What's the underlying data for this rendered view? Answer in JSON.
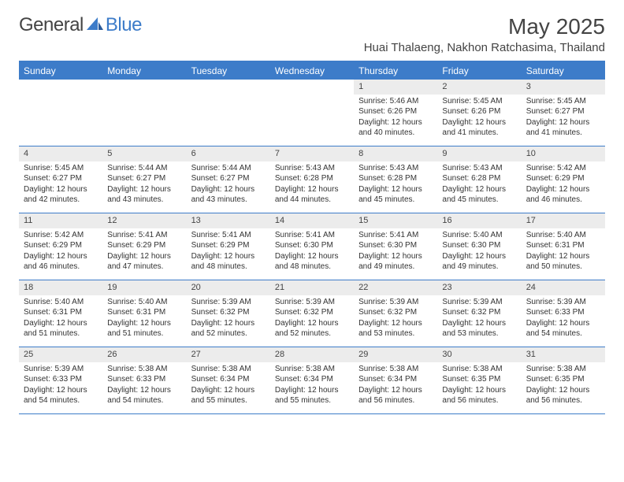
{
  "logo": {
    "text1": "General",
    "text2": "Blue"
  },
  "title": "May 2025",
  "subtitle": "Huai Thalaeng, Nakhon Ratchasima, Thailand",
  "colors": {
    "accent": "#3d7cc9",
    "daynum_bg": "#ececec",
    "text": "#333333",
    "bg": "#ffffff"
  },
  "weekdays": [
    "Sunday",
    "Monday",
    "Tuesday",
    "Wednesday",
    "Thursday",
    "Friday",
    "Saturday"
  ],
  "weeks": [
    [
      {
        "n": "",
        "sr": "",
        "ss": "",
        "dl": ""
      },
      {
        "n": "",
        "sr": "",
        "ss": "",
        "dl": ""
      },
      {
        "n": "",
        "sr": "",
        "ss": "",
        "dl": ""
      },
      {
        "n": "",
        "sr": "",
        "ss": "",
        "dl": ""
      },
      {
        "n": "1",
        "sr": "Sunrise: 5:46 AM",
        "ss": "Sunset: 6:26 PM",
        "dl": "Daylight: 12 hours and 40 minutes."
      },
      {
        "n": "2",
        "sr": "Sunrise: 5:45 AM",
        "ss": "Sunset: 6:26 PM",
        "dl": "Daylight: 12 hours and 41 minutes."
      },
      {
        "n": "3",
        "sr": "Sunrise: 5:45 AM",
        "ss": "Sunset: 6:27 PM",
        "dl": "Daylight: 12 hours and 41 minutes."
      }
    ],
    [
      {
        "n": "4",
        "sr": "Sunrise: 5:45 AM",
        "ss": "Sunset: 6:27 PM",
        "dl": "Daylight: 12 hours and 42 minutes."
      },
      {
        "n": "5",
        "sr": "Sunrise: 5:44 AM",
        "ss": "Sunset: 6:27 PM",
        "dl": "Daylight: 12 hours and 43 minutes."
      },
      {
        "n": "6",
        "sr": "Sunrise: 5:44 AM",
        "ss": "Sunset: 6:27 PM",
        "dl": "Daylight: 12 hours and 43 minutes."
      },
      {
        "n": "7",
        "sr": "Sunrise: 5:43 AM",
        "ss": "Sunset: 6:28 PM",
        "dl": "Daylight: 12 hours and 44 minutes."
      },
      {
        "n": "8",
        "sr": "Sunrise: 5:43 AM",
        "ss": "Sunset: 6:28 PM",
        "dl": "Daylight: 12 hours and 45 minutes."
      },
      {
        "n": "9",
        "sr": "Sunrise: 5:43 AM",
        "ss": "Sunset: 6:28 PM",
        "dl": "Daylight: 12 hours and 45 minutes."
      },
      {
        "n": "10",
        "sr": "Sunrise: 5:42 AM",
        "ss": "Sunset: 6:29 PM",
        "dl": "Daylight: 12 hours and 46 minutes."
      }
    ],
    [
      {
        "n": "11",
        "sr": "Sunrise: 5:42 AM",
        "ss": "Sunset: 6:29 PM",
        "dl": "Daylight: 12 hours and 46 minutes."
      },
      {
        "n": "12",
        "sr": "Sunrise: 5:41 AM",
        "ss": "Sunset: 6:29 PM",
        "dl": "Daylight: 12 hours and 47 minutes."
      },
      {
        "n": "13",
        "sr": "Sunrise: 5:41 AM",
        "ss": "Sunset: 6:29 PM",
        "dl": "Daylight: 12 hours and 48 minutes."
      },
      {
        "n": "14",
        "sr": "Sunrise: 5:41 AM",
        "ss": "Sunset: 6:30 PM",
        "dl": "Daylight: 12 hours and 48 minutes."
      },
      {
        "n": "15",
        "sr": "Sunrise: 5:41 AM",
        "ss": "Sunset: 6:30 PM",
        "dl": "Daylight: 12 hours and 49 minutes."
      },
      {
        "n": "16",
        "sr": "Sunrise: 5:40 AM",
        "ss": "Sunset: 6:30 PM",
        "dl": "Daylight: 12 hours and 49 minutes."
      },
      {
        "n": "17",
        "sr": "Sunrise: 5:40 AM",
        "ss": "Sunset: 6:31 PM",
        "dl": "Daylight: 12 hours and 50 minutes."
      }
    ],
    [
      {
        "n": "18",
        "sr": "Sunrise: 5:40 AM",
        "ss": "Sunset: 6:31 PM",
        "dl": "Daylight: 12 hours and 51 minutes."
      },
      {
        "n": "19",
        "sr": "Sunrise: 5:40 AM",
        "ss": "Sunset: 6:31 PM",
        "dl": "Daylight: 12 hours and 51 minutes."
      },
      {
        "n": "20",
        "sr": "Sunrise: 5:39 AM",
        "ss": "Sunset: 6:32 PM",
        "dl": "Daylight: 12 hours and 52 minutes."
      },
      {
        "n": "21",
        "sr": "Sunrise: 5:39 AM",
        "ss": "Sunset: 6:32 PM",
        "dl": "Daylight: 12 hours and 52 minutes."
      },
      {
        "n": "22",
        "sr": "Sunrise: 5:39 AM",
        "ss": "Sunset: 6:32 PM",
        "dl": "Daylight: 12 hours and 53 minutes."
      },
      {
        "n": "23",
        "sr": "Sunrise: 5:39 AM",
        "ss": "Sunset: 6:32 PM",
        "dl": "Daylight: 12 hours and 53 minutes."
      },
      {
        "n": "24",
        "sr": "Sunrise: 5:39 AM",
        "ss": "Sunset: 6:33 PM",
        "dl": "Daylight: 12 hours and 54 minutes."
      }
    ],
    [
      {
        "n": "25",
        "sr": "Sunrise: 5:39 AM",
        "ss": "Sunset: 6:33 PM",
        "dl": "Daylight: 12 hours and 54 minutes."
      },
      {
        "n": "26",
        "sr": "Sunrise: 5:38 AM",
        "ss": "Sunset: 6:33 PM",
        "dl": "Daylight: 12 hours and 54 minutes."
      },
      {
        "n": "27",
        "sr": "Sunrise: 5:38 AM",
        "ss": "Sunset: 6:34 PM",
        "dl": "Daylight: 12 hours and 55 minutes."
      },
      {
        "n": "28",
        "sr": "Sunrise: 5:38 AM",
        "ss": "Sunset: 6:34 PM",
        "dl": "Daylight: 12 hours and 55 minutes."
      },
      {
        "n": "29",
        "sr": "Sunrise: 5:38 AM",
        "ss": "Sunset: 6:34 PM",
        "dl": "Daylight: 12 hours and 56 minutes."
      },
      {
        "n": "30",
        "sr": "Sunrise: 5:38 AM",
        "ss": "Sunset: 6:35 PM",
        "dl": "Daylight: 12 hours and 56 minutes."
      },
      {
        "n": "31",
        "sr": "Sunrise: 5:38 AM",
        "ss": "Sunset: 6:35 PM",
        "dl": "Daylight: 12 hours and 56 minutes."
      }
    ]
  ]
}
